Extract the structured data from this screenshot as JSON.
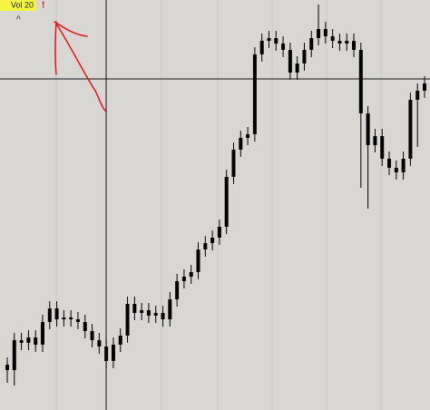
{
  "chart_data": {
    "type": "candlestick",
    "label": "Vol 20",
    "warning": "!",
    "collapse": "^",
    "ylim": [
      0,
      452
    ],
    "color": "#000000",
    "open": [
      50,
      44,
      77,
      74,
      80,
      72,
      97,
      112,
      100,
      102,
      100,
      97,
      87,
      77,
      70,
      54,
      72,
      82,
      117,
      107,
      110,
      104,
      107,
      100,
      122,
      142,
      147,
      152,
      177,
      184,
      190,
      202,
      257,
      287,
      300,
      304,
      392,
      407,
      410,
      404,
      397,
      372,
      382,
      397,
      410,
      420,
      412,
      407,
      404,
      407,
      397,
      327,
      292,
      302,
      277,
      267,
      262,
      277,
      342,
      352
    ],
    "high": [
      58,
      85,
      85,
      88,
      88,
      105,
      120,
      120,
      110,
      110,
      108,
      105,
      95,
      85,
      78,
      80,
      90,
      125,
      125,
      118,
      118,
      115,
      115,
      130,
      150,
      155,
      160,
      185,
      192,
      198,
      210,
      265,
      295,
      308,
      312,
      400,
      415,
      418,
      418,
      412,
      405,
      390,
      405,
      418,
      447,
      428,
      420,
      415,
      415,
      415,
      405,
      335,
      310,
      310,
      285,
      275,
      285,
      350,
      360,
      368
    ],
    "low": [
      30,
      27,
      66,
      66,
      64,
      64,
      89,
      92,
      92,
      92,
      89,
      79,
      69,
      62,
      46,
      46,
      64,
      74,
      99,
      99,
      96,
      96,
      92,
      92,
      114,
      134,
      139,
      144,
      169,
      176,
      182,
      194,
      249,
      279,
      292,
      296,
      384,
      399,
      396,
      389,
      364,
      364,
      374,
      389,
      402,
      404,
      399,
      396,
      396,
      389,
      245,
      222,
      284,
      269,
      259,
      254,
      254,
      269,
      290,
      344
    ],
    "close": [
      44,
      77,
      74,
      80,
      72,
      97,
      112,
      100,
      102,
      100,
      97,
      87,
      77,
      70,
      54,
      72,
      82,
      117,
      107,
      110,
      104,
      107,
      100,
      122,
      142,
      147,
      152,
      177,
      184,
      190,
      202,
      257,
      287,
      300,
      304,
      392,
      407,
      410,
      404,
      397,
      372,
      382,
      397,
      410,
      420,
      412,
      407,
      404,
      407,
      397,
      327,
      292,
      302,
      277,
      267,
      262,
      277,
      342,
      352,
      360
    ]
  }
}
